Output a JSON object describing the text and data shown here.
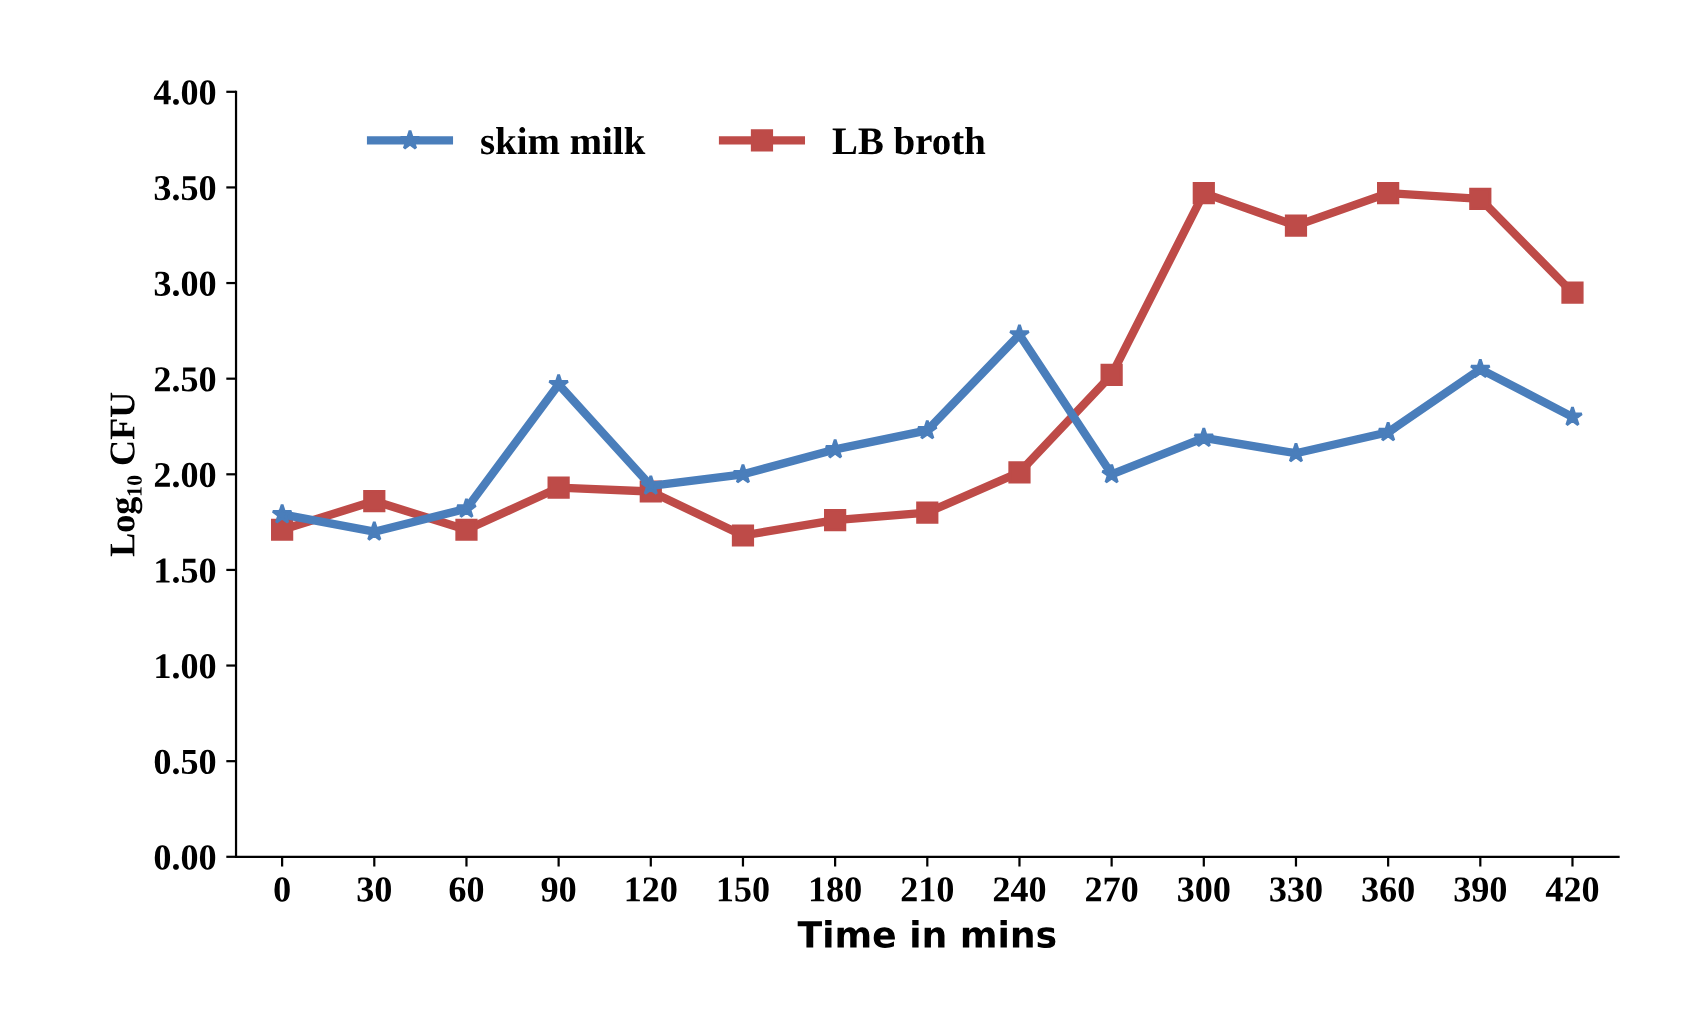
{
  "chart_data": {
    "type": "line",
    "xlabel": "Time in mins",
    "ylabel": "Log₁₀ CFU",
    "categories": [
      "0",
      "30",
      "60",
      "90",
      "120",
      "150",
      "180",
      "210",
      "240",
      "270",
      "300",
      "330",
      "360",
      "390",
      "420"
    ],
    "series": [
      {
        "name": "skim milk",
        "color": "#4a7ebb",
        "marker": "star",
        "values": [
          1.79,
          1.7,
          1.82,
          2.47,
          1.94,
          2.0,
          2.13,
          2.23,
          2.73,
          2.0,
          2.19,
          2.11,
          2.22,
          2.55,
          2.3
        ]
      },
      {
        "name": "LB broth",
        "color": "#be4b48",
        "marker": "square",
        "values": [
          1.71,
          1.86,
          1.71,
          1.93,
          1.91,
          1.68,
          1.76,
          1.8,
          2.01,
          2.52,
          3.47,
          3.3,
          3.47,
          3.44,
          2.95
        ]
      }
    ],
    "ylim": [
      0,
      4
    ],
    "yticks": [
      {
        "value": 0,
        "label": "0.00"
      },
      {
        "value": 0.5,
        "label": "0.50"
      },
      {
        "value": 1,
        "label": "1.00"
      },
      {
        "value": 1.5,
        "label": "1.50"
      },
      {
        "value": 2,
        "label": "2.00"
      },
      {
        "value": 2.5,
        "label": "2.50"
      },
      {
        "value": 3,
        "label": "3.00"
      },
      {
        "value": 3.5,
        "label": "3.50"
      },
      {
        "value": 4,
        "label": "4.00"
      }
    ],
    "legend": "top",
    "grid": false,
    "line_style": "solid"
  }
}
